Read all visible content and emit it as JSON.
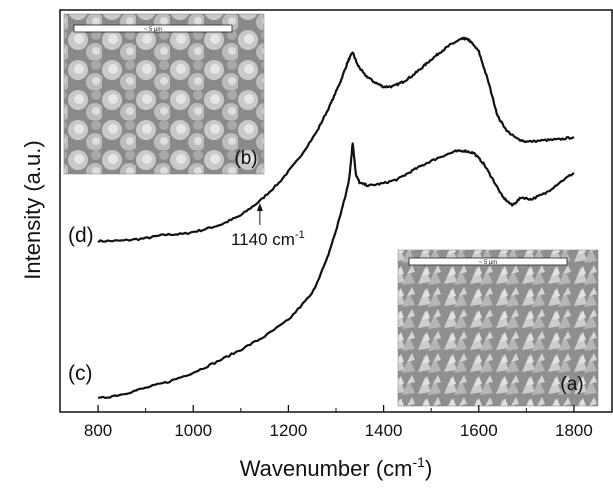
{
  "chart_data": {
    "type": "line",
    "title": "",
    "xlabel": "Wavenumber (cm",
    "xlabel_sup": "-1",
    "xlabel_end": ")",
    "ylabel": "Intensity (a.u.)",
    "xlim": [
      720,
      1880
    ],
    "ylim": [
      0,
      100
    ],
    "x_ticks": [
      800,
      1000,
      1200,
      1400,
      1600,
      1800
    ],
    "x_tick_labels": [
      "800",
      "1000",
      "1200",
      "1400",
      "1600",
      "1800"
    ],
    "grid": false,
    "legend": "none",
    "series": [
      {
        "label": "(d)",
        "x": [
          800,
          850,
          900,
          940,
          980,
          1020,
          1060,
          1100,
          1140,
          1180,
          1220,
          1260,
          1290,
          1310,
          1325,
          1335,
          1345,
          1360,
          1380,
          1400,
          1420,
          1440,
          1460,
          1480,
          1500,
          1520,
          1540,
          1560,
          1570,
          1580,
          1600,
          1620,
          1640,
          1660,
          1680,
          1700,
          1740,
          1770,
          1800
        ],
        "y": [
          42.5,
          42.6,
          43.2,
          44.1,
          44.3,
          45.3,
          46.7,
          48.9,
          52.5,
          57.0,
          62.7,
          69.8,
          76.9,
          82.4,
          87.2,
          89.5,
          86.4,
          83.9,
          82.1,
          80.9,
          81.0,
          82.1,
          83.6,
          85.6,
          87.7,
          89.6,
          91.3,
          92.6,
          92.9,
          92.5,
          89.7,
          82.2,
          73.5,
          69.8,
          68.0,
          67.2,
          67.6,
          67.8,
          68.4
        ]
      },
      {
        "label": "(c)",
        "x": [
          800,
          850,
          900,
          950,
          1000,
          1050,
          1100,
          1150,
          1200,
          1250,
          1280,
          1300,
          1320,
          1328,
          1335,
          1342,
          1350,
          1370,
          1400,
          1430,
          1460,
          1490,
          1520,
          1550,
          1570,
          1590,
          1610,
          1630,
          1650,
          1670,
          1690,
          1710,
          1740,
          1770,
          1800
        ],
        "y": [
          3.3,
          4.4,
          6.0,
          7.6,
          9.8,
          12.5,
          15.5,
          18.8,
          22.9,
          29.5,
          37.7,
          45.1,
          53.8,
          58.2,
          67.0,
          59.0,
          56.9,
          56.3,
          56.9,
          57.9,
          60.0,
          61.9,
          63.5,
          64.8,
          65.0,
          64.4,
          61.8,
          57.8,
          53.5,
          51.4,
          53.4,
          52.9,
          54.4,
          57.1,
          59.5
        ]
      }
    ],
    "annotations": [
      {
        "text": "1140 cm",
        "sup": "-1",
        "x": 1140,
        "arrow_to_y": 52.0
      }
    ],
    "insets": [
      {
        "label": "(b)",
        "scale_text": "~ 5 μm"
      },
      {
        "label": "(a)",
        "scale_text": "~ 5 μm"
      }
    ],
    "colors": {
      "line": "#111111",
      "axis": "#111111"
    }
  }
}
